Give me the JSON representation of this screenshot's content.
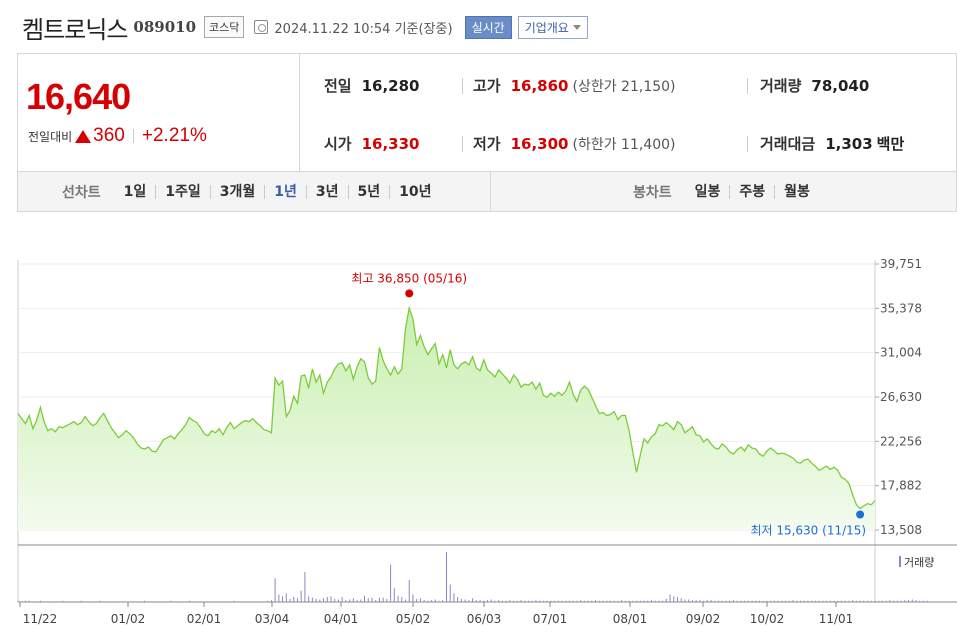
{
  "header": {
    "company": "켐트로닉스",
    "code": "089010",
    "market": "코스닥",
    "datetime": "2024.11.22 10:54 기준(장중)",
    "realtime": "실시간",
    "company_info": "기업개요"
  },
  "price": {
    "current": "16,640",
    "change_label": "전일대비",
    "change": "360",
    "change_pct": "+2.21%"
  },
  "stats": {
    "prev_label": "전일",
    "prev": "16,280",
    "high_label": "고가",
    "high": "16,860",
    "upper_limit": "(상한가 21,150)",
    "volume_label": "거래량",
    "volume": "78,040",
    "open_label": "시가",
    "open": "16,330",
    "low_label": "저가",
    "low": "16,300",
    "lower_limit": "(하한가 11,400)",
    "amount_label": "거래대금",
    "amount": "1,303",
    "amount_unit": "백만"
  },
  "tabs": {
    "line_label": "선차트",
    "line": [
      "1일",
      "1주일",
      "3개월",
      "1년",
      "3년",
      "5년",
      "10년"
    ],
    "selected": "1년",
    "candle_label": "봉차트",
    "candle": [
      "일봉",
      "주봉",
      "월봉"
    ]
  },
  "colors": {
    "up": "#d60000",
    "line": "#7ccc3a",
    "fill_top": "#c9efb0",
    "fill_bottom": "#f3fbee",
    "min_marker": "#1f6fd6",
    "volume_bar": "#8e86c4"
  },
  "chart_data": {
    "type": "area",
    "x_ticks": [
      "11/22",
      "01/02",
      "02/01",
      "03/04",
      "04/01",
      "05/02",
      "06/03",
      "07/01",
      "08/01",
      "09/02",
      "10/02",
      "11/01"
    ],
    "y_ticks": [
      "39,751",
      "35,378",
      "31,004",
      "26,630",
      "22,256",
      "17,882",
      "13,508"
    ],
    "ylim": [
      13508,
      39751
    ],
    "max_label": "최고 36,850 (05/16)",
    "max": {
      "date": "05/16",
      "value": 36850
    },
    "min_label": "최저 15,630 (11/15)",
    "min": {
      "date": "11/15",
      "value": 15630
    },
    "volume_label": "거래량",
    "series": [
      {
        "values": [
          25000,
          24500,
          24000,
          24800,
          23500,
          24300,
          25600,
          24200,
          23300,
          23500,
          23200,
          23700,
          23600,
          23800,
          24000,
          24200,
          23900,
          24100,
          24700,
          24200,
          23800,
          24000,
          24600,
          25000,
          24300,
          23600,
          23100,
          22600,
          22900,
          23300,
          23000,
          22600,
          22000,
          21600,
          21500,
          21700,
          21300,
          21200,
          21800,
          22400,
          22600,
          22800,
          22500,
          23000,
          23400,
          23900,
          24600,
          24300,
          24100,
          23600,
          23000,
          22800,
          23300,
          23100,
          23500,
          22900,
          23600,
          24100,
          23500,
          23800,
          24100,
          24300,
          24200,
          24500,
          24100,
          23800,
          23400,
          23300,
          23100,
          28500,
          27800,
          28200,
          24700,
          25300,
          26700,
          26000,
          28700,
          28800,
          27500,
          29400,
          28100,
          28800,
          27000,
          28100,
          28600,
          29400,
          29900,
          30000,
          29200,
          29800,
          28400,
          29600,
          30400,
          30100,
          28500,
          27900,
          28200,
          31500,
          30200,
          29400,
          28800,
          29600,
          28900,
          29400,
          33400,
          35400,
          34300,
          31800,
          32700,
          31600,
          30800,
          31400,
          31900,
          29900,
          30800,
          29500,
          31300,
          29800,
          29400,
          29900,
          30100,
          29800,
          30600,
          29500,
          29200,
          30300,
          29300,
          29000,
          28600,
          29300,
          28900,
          28500,
          28000,
          28800,
          28400,
          27600,
          27900,
          27800,
          28100,
          27400,
          28000,
          26800,
          26600,
          27000,
          26700,
          27100,
          26800,
          27200,
          28100,
          26900,
          26200,
          27300,
          27700,
          27400,
          26600,
          25800,
          25000,
          25100,
          24800,
          24900,
          25200,
          24400,
          24800,
          24800,
          23300,
          21200,
          19200,
          20900,
          22500,
          22100,
          22700,
          23000,
          23900,
          23800,
          24100,
          23800,
          23400,
          24200,
          23900,
          23100,
          23400,
          23700,
          22900,
          22800,
          22200,
          22500,
          22000,
          21600,
          21500,
          22000,
          21700,
          21200,
          21000,
          21400,
          21700,
          21300,
          21900,
          21600,
          21500,
          21000,
          20800,
          21300,
          21600,
          21300,
          21000,
          21100,
          21000,
          20800,
          20600,
          20200,
          20100,
          20400,
          20500,
          20100,
          19800,
          19400,
          19600,
          19800,
          19500,
          19700,
          19400,
          18700,
          18500,
          18100,
          17000,
          16000,
          15630,
          15900,
          16100,
          16000,
          16400
        ]
      }
    ],
    "volumes": [
      2,
      1,
      2,
      2,
      1,
      1,
      2,
      1,
      1,
      1,
      1,
      1,
      2,
      1,
      1,
      1,
      1,
      2,
      1,
      1,
      1,
      1,
      2,
      1,
      1,
      1,
      1,
      1,
      1,
      1,
      1,
      1,
      1,
      1,
      2,
      1,
      1,
      1,
      1,
      1,
      1,
      2,
      1,
      1,
      1,
      1,
      2,
      1,
      1,
      1,
      1,
      1,
      1,
      1,
      1,
      1,
      1,
      1,
      2,
      1,
      1,
      1,
      1,
      1,
      1,
      1,
      1,
      2,
      3,
      38,
      12,
      9,
      14,
      5,
      8,
      6,
      18,
      48,
      9,
      7,
      5,
      4,
      6,
      8,
      9,
      5,
      4,
      8,
      3,
      4,
      6,
      3,
      4,
      10,
      6,
      7,
      3,
      7,
      7,
      5,
      60,
      22,
      10,
      8,
      4,
      35,
      12,
      5,
      6,
      3,
      2,
      3,
      4,
      2,
      3,
      80,
      28,
      14,
      8,
      5,
      4,
      3,
      6,
      3,
      3,
      2,
      3,
      4,
      2,
      3,
      2,
      2,
      3,
      2,
      2,
      3,
      2,
      2,
      2,
      3,
      2,
      2,
      2,
      2,
      2,
      2,
      2,
      2,
      2,
      2,
      2,
      3,
      2,
      2,
      2,
      3,
      2,
      2,
      2,
      2,
      2,
      2,
      3,
      2,
      2,
      2,
      2,
      2,
      2,
      2,
      3,
      2,
      2,
      2,
      5,
      12,
      9,
      8,
      6,
      4,
      4,
      3,
      3,
      3,
      2,
      3,
      3,
      2,
      2,
      2,
      2,
      2,
      3,
      2,
      2,
      2,
      2,
      2,
      2,
      2,
      2,
      2,
      2,
      2,
      2,
      2,
      2,
      2,
      3,
      2,
      2,
      2,
      2,
      2,
      2,
      2,
      2,
      2,
      2,
      2,
      2,
      2,
      2,
      2,
      3,
      2,
      2,
      2,
      2,
      2,
      2,
      2,
      2,
      2,
      3,
      2,
      2,
      2,
      3,
      3,
      4,
      3,
      2,
      2,
      2
    ]
  }
}
